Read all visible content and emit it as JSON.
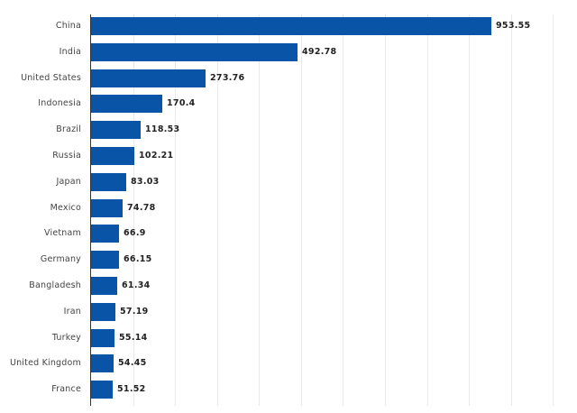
{
  "chart_data": {
    "type": "bar",
    "orientation": "horizontal",
    "title": "",
    "xlabel": "",
    "ylabel": "",
    "categories": [
      "China",
      "India",
      "United States",
      "Indonesia",
      "Brazil",
      "Russia",
      "Japan",
      "Mexico",
      "Vietnam",
      "Germany",
      "Bangladesh",
      "Iran",
      "Turkey",
      "United Kingdom",
      "France"
    ],
    "values": [
      953.55,
      492.78,
      273.76,
      170.4,
      118.53,
      102.21,
      83.03,
      74.78,
      66.9,
      66.15,
      61.34,
      57.19,
      55.14,
      54.45,
      51.52
    ],
    "value_labels": [
      "953.55",
      "492.78",
      "273.76",
      "170.4",
      "118.53",
      "102.21",
      "83.03",
      "74.78",
      "66.9",
      "66.15",
      "61.34",
      "57.19",
      "55.14",
      "54.45",
      "51.52"
    ],
    "xlim": [
      0,
      1100
    ],
    "grid": true,
    "legend": null,
    "bar_color": "#0a54a8"
  }
}
